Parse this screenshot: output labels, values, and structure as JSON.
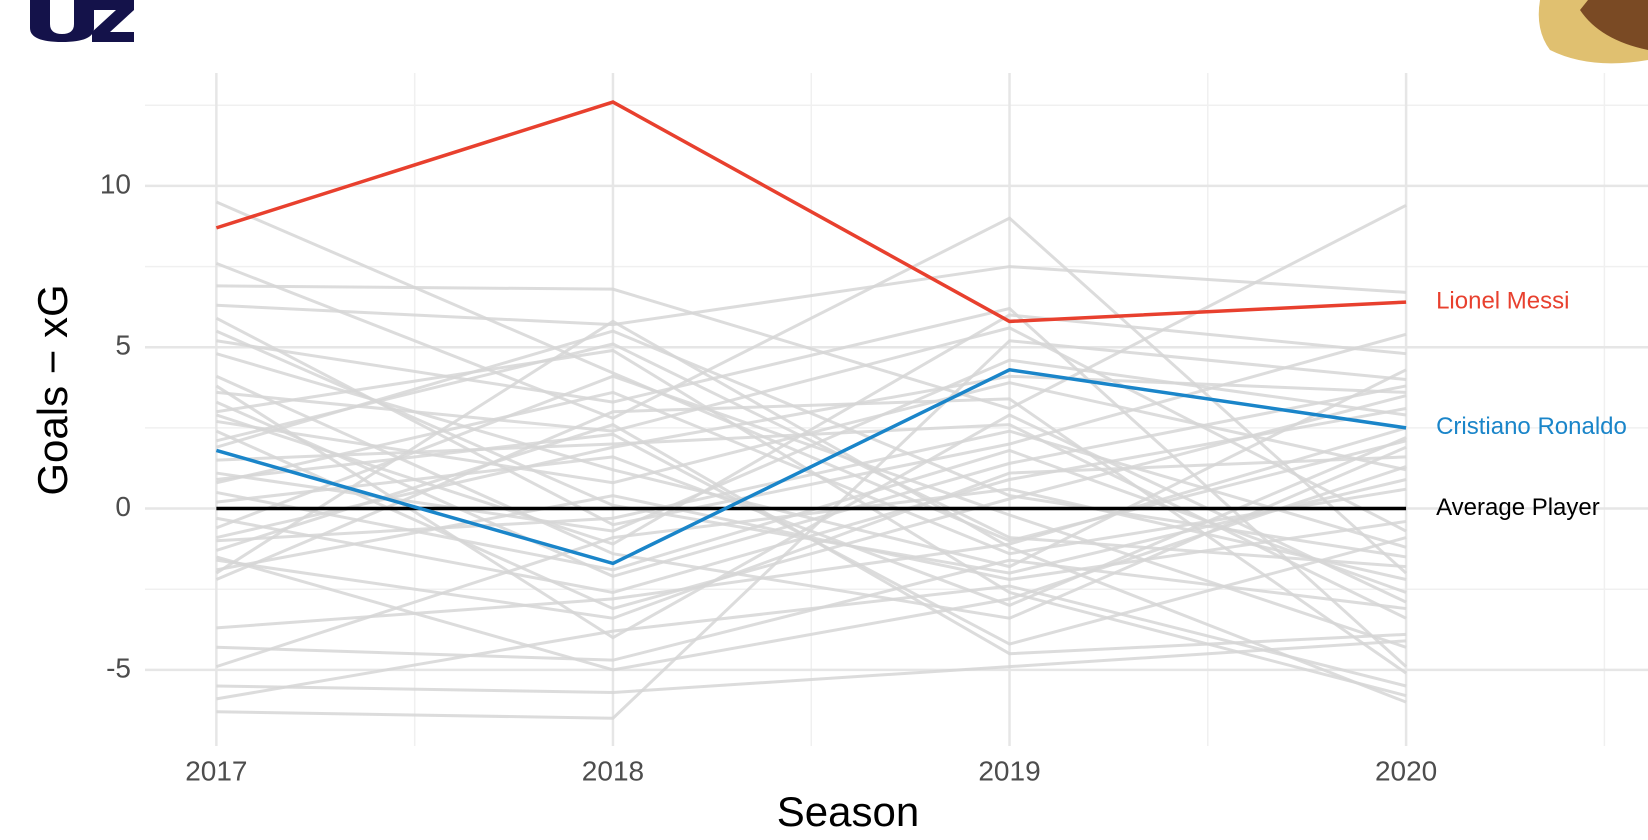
{
  "chart_data": {
    "type": "line",
    "x_label": "Season",
    "y_label": "Goals − xG",
    "x": [
      2017,
      2018,
      2019,
      2020
    ],
    "xlim": [
      2016.82,
      2020.61
    ],
    "xticks": [
      2017,
      2018,
      2019,
      2020
    ],
    "xminor": [
      2017.5,
      2018.5,
      2019.5,
      2020.5
    ],
    "ylim": [
      -7.36,
      13.5
    ],
    "yticks": [
      -5,
      0,
      5,
      10
    ],
    "yminor": [
      -2.5,
      2.5,
      7.5,
      12.5
    ],
    "grid": true,
    "series": [
      {
        "color": "#d6d6d6",
        "values": [
          9.5,
          4.2,
          -1.0,
          2.1
        ]
      },
      {
        "color": "#d6d6d6",
        "values": [
          7.6,
          2.8,
          9.0,
          -2.0
        ]
      },
      {
        "color": "#d6d6d6",
        "values": [
          6.9,
          6.8,
          3.1,
          9.4
        ]
      },
      {
        "color": "#d6d6d6",
        "values": [
          6.3,
          5.7,
          7.5,
          6.7
        ]
      },
      {
        "color": "#d6d6d6",
        "values": [
          5.9,
          -0.5,
          2.0,
          5.4
        ]
      },
      {
        "color": "#d6d6d6",
        "values": [
          5.2,
          3.3,
          6.2,
          -4.9
        ]
      },
      {
        "color": "#d6d6d6",
        "values": [
          4.8,
          1.2,
          -1.8,
          4.3
        ]
      },
      {
        "color": "#d6d6d6",
        "values": [
          3.6,
          2.4,
          5.6,
          -0.7
        ]
      },
      {
        "color": "#d6d6d6",
        "values": [
          3.3,
          -2.1,
          1.4,
          3.8
        ]
      },
      {
        "color": "#d6d6d6",
        "values": [
          3.0,
          4.9,
          -2.6,
          -5.8
        ]
      },
      {
        "color": "#d6d6d6",
        "values": [
          2.7,
          0.8,
          3.9,
          1.2
        ]
      },
      {
        "color": "#d6d6d6",
        "values": [
          2.4,
          -3.1,
          0.3,
          3.5
        ]
      },
      {
        "color": "#d6d6d6",
        "values": [
          2.1,
          5.1,
          -0.9,
          -1.8
        ]
      },
      {
        "color": "#d6d6d6",
        "values": [
          1.5,
          2.0,
          2.6,
          -3.4
        ]
      },
      {
        "color": "#d6d6d6",
        "values": [
          1.1,
          -0.7,
          4.6,
          2.9
        ]
      },
      {
        "color": "#d6d6d6",
        "values": [
          0.8,
          3.6,
          -1.4,
          0.6
        ]
      },
      {
        "color": "#d6d6d6",
        "values": [
          0.5,
          -1.9,
          1.8,
          -2.6
        ]
      },
      {
        "color": "#d6d6d6",
        "values": [
          0.2,
          1.6,
          -3.0,
          2.2
        ]
      },
      {
        "color": "#d6d6d6",
        "values": [
          -0.3,
          -2.6,
          0.9,
          3.1
        ]
      },
      {
        "color": "#d6d6d6",
        "values": [
          -0.6,
          4.1,
          -0.2,
          -4.3
        ]
      },
      {
        "color": "#d6d6d6",
        "values": [
          -1.0,
          -0.3,
          2.4,
          -1.2
        ]
      },
      {
        "color": "#d6d6d6",
        "values": [
          -1.3,
          2.6,
          -4.5,
          -3.9
        ]
      },
      {
        "color": "#d6d6d6",
        "values": [
          -1.6,
          -3.4,
          1.1,
          1.6
        ]
      },
      {
        "color": "#d6d6d6",
        "values": [
          -1.9,
          0.4,
          -2.2,
          -0.4
        ]
      },
      {
        "color": "#d6d6d6",
        "values": [
          -2.2,
          3.0,
          3.4,
          -5.1
        ]
      },
      {
        "color": "#d6d6d6",
        "values": [
          -3.7,
          -2.8,
          -1.1,
          2.5
        ]
      },
      {
        "color": "#d6d6d6",
        "values": [
          -4.3,
          -4.7,
          -1.6,
          -3.1
        ]
      },
      {
        "color": "#d6d6d6",
        "values": [
          -4.9,
          -0.9,
          0.6,
          -2.2
        ]
      },
      {
        "color": "#d6d6d6",
        "values": [
          -5.5,
          -5.7,
          -4.9,
          -4.1
        ]
      },
      {
        "color": "#d6d6d6",
        "values": [
          -5.9,
          -3.8,
          -2.4,
          -5.5
        ]
      },
      {
        "color": "#d6d6d6",
        "values": [
          -6.3,
          -6.5,
          5.2,
          4.0
        ]
      },
      {
        "color": "#d6d6d6",
        "values": [
          4.1,
          -1.4,
          -3.4,
          1.9
        ]
      },
      {
        "color": "#d6d6d6",
        "values": [
          1.9,
          5.5,
          0.4,
          -1.5
        ]
      },
      {
        "color": "#d6d6d6",
        "values": [
          -0.9,
          1.9,
          4.1,
          3.6
        ]
      },
      {
        "color": "#d6d6d6",
        "values": [
          3.8,
          -4.0,
          2.9,
          -2.9
        ]
      },
      {
        "color": "#d6d6d6",
        "values": [
          5.5,
          0.1,
          -2.0,
          0.9
        ]
      },
      {
        "color": "#d6d6d6",
        "values": [
          -2.0,
          5.8,
          -1.2,
          -6.0
        ]
      },
      {
        "color": "#d6d6d6",
        "values": [
          2.9,
          -1.1,
          6.0,
          4.8
        ]
      },
      {
        "color": "#d6d6d6",
        "values": [
          -1.5,
          -5.0,
          -2.8,
          1.3
        ]
      },
      {
        "color": "#d6d6d6",
        "values": [
          0.9,
          2.3,
          -4.2,
          -0.9
        ]
      },
      {
        "name": "Average Player",
        "color": "#000000",
        "values": [
          0,
          0,
          0,
          0
        ]
      },
      {
        "name": "Cristiano Ronaldo",
        "color": "#1a85c9",
        "values": [
          1.8,
          -1.7,
          4.3,
          2.5
        ]
      },
      {
        "name": "Lionel Messi",
        "color": "#e8402e",
        "values": [
          8.7,
          12.6,
          5.8,
          6.4
        ]
      }
    ]
  }
}
